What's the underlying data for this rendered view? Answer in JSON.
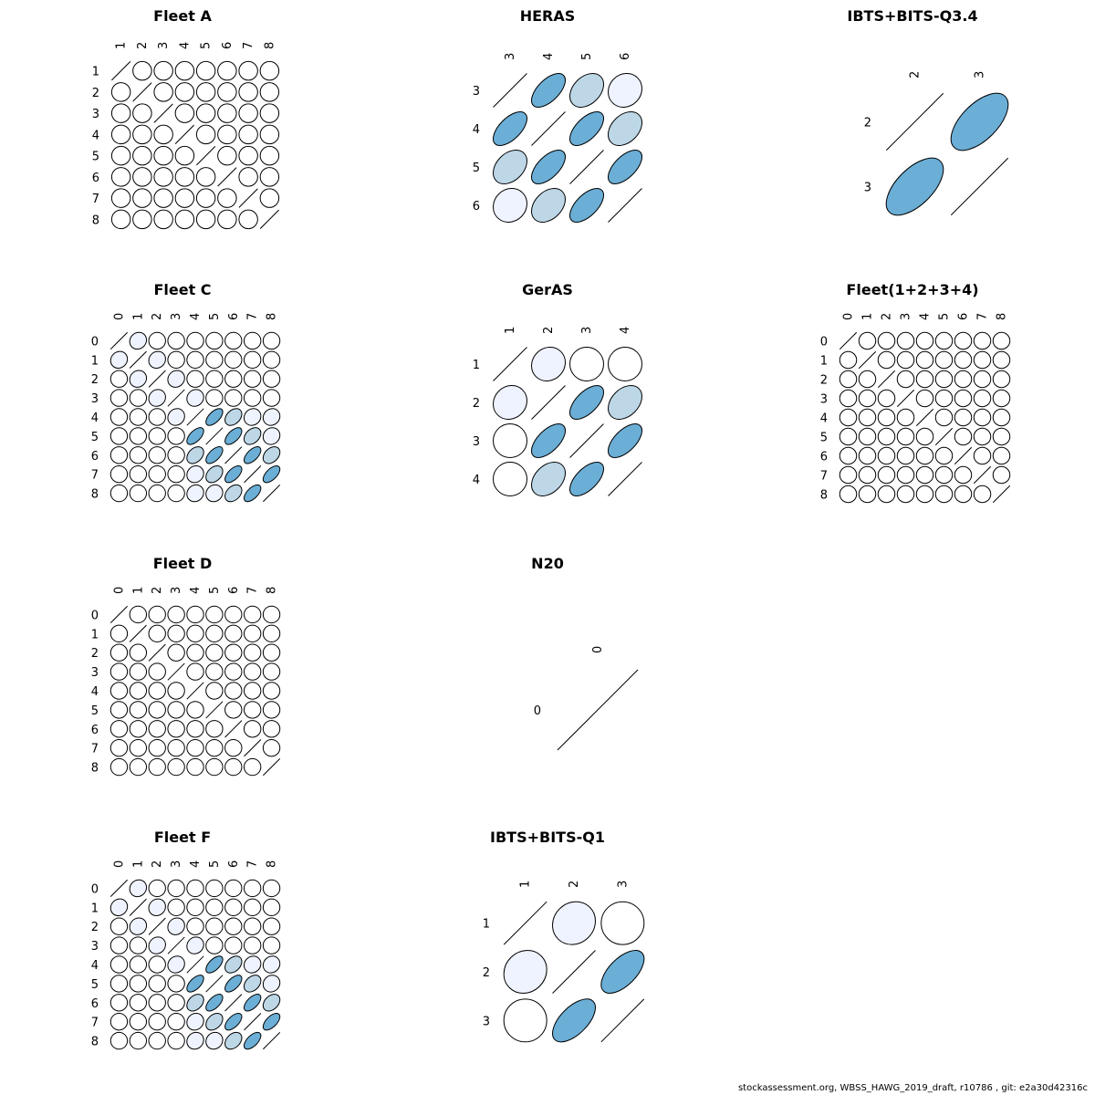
{
  "footer_text": "stockassessment.org, WBSS_HAWG_2019_draft, r10786 , git: e2a30d42316c",
  "palette": {
    "strong": "#6baed6",
    "medium": "#bdd7e7",
    "weak": "#eff3ff",
    "none": "#ffffff",
    "stroke": "#000000"
  },
  "chart_data": [
    {
      "type": "heatmap",
      "title": "Fleet A",
      "labels": [
        "1",
        "2",
        "3",
        "4",
        "5",
        "6",
        "7",
        "8"
      ],
      "matrix": [
        [
          1,
          0,
          0,
          0,
          0,
          0,
          0,
          0
        ],
        [
          0,
          1,
          0,
          0,
          0,
          0,
          0,
          0
        ],
        [
          0,
          0,
          1,
          0,
          0,
          0,
          0,
          0
        ],
        [
          0,
          0,
          0,
          1,
          0,
          0,
          0,
          0
        ],
        [
          0,
          0,
          0,
          0,
          1,
          0,
          0,
          0
        ],
        [
          0,
          0,
          0,
          0,
          0,
          1,
          0,
          0
        ],
        [
          0,
          0,
          0,
          0,
          0,
          0,
          1,
          0
        ],
        [
          0,
          0,
          0,
          0,
          0,
          0,
          0,
          1
        ]
      ]
    },
    {
      "type": "heatmap",
      "title": "HERAS",
      "labels": [
        "3",
        "4",
        "5",
        "6"
      ],
      "matrix": [
        [
          1,
          0.6,
          0.35,
          0.1
        ],
        [
          0.6,
          1,
          0.6,
          0.35
        ],
        [
          0.35,
          0.6,
          1,
          0.6
        ],
        [
          0.1,
          0.35,
          0.6,
          1
        ]
      ]
    },
    {
      "type": "heatmap",
      "title": "IBTS+BITS-Q3.4",
      "labels": [
        "2",
        "3"
      ],
      "matrix": [
        [
          1,
          0.6
        ],
        [
          0.6,
          1
        ]
      ]
    },
    {
      "type": "heatmap",
      "title": "Fleet C",
      "labels": [
        "0",
        "1",
        "2",
        "3",
        "4",
        "5",
        "6",
        "7",
        "8"
      ],
      "matrix": [
        [
          1,
          0.1,
          0,
          0,
          0,
          0,
          0,
          0,
          0
        ],
        [
          0.1,
          1,
          0.1,
          0,
          0,
          0,
          0,
          0,
          0
        ],
        [
          0,
          0.1,
          1,
          0.1,
          0,
          0,
          0,
          0,
          0
        ],
        [
          0,
          0,
          0.1,
          1,
          0.1,
          0,
          0,
          0,
          0
        ],
        [
          0,
          0,
          0,
          0.1,
          1,
          0.6,
          0.35,
          0.1,
          0.1
        ],
        [
          0,
          0,
          0,
          0,
          0.6,
          1,
          0.6,
          0.35,
          0.1
        ],
        [
          0,
          0,
          0,
          0,
          0.35,
          0.6,
          1,
          0.6,
          0.35
        ],
        [
          0,
          0,
          0,
          0,
          0.1,
          0.35,
          0.6,
          1,
          0.6
        ],
        [
          0,
          0,
          0,
          0,
          0.1,
          0.1,
          0.35,
          0.6,
          1
        ]
      ]
    },
    {
      "type": "heatmap",
      "title": "GerAS",
      "labels": [
        "1",
        "2",
        "3",
        "4"
      ],
      "matrix": [
        [
          1,
          0.1,
          0,
          0
        ],
        [
          0.1,
          1,
          0.6,
          0.35
        ],
        [
          0,
          0.6,
          1,
          0.6
        ],
        [
          0,
          0.35,
          0.6,
          1
        ]
      ]
    },
    {
      "type": "heatmap",
      "title": "Fleet(1+2+3+4)",
      "labels": [
        "0",
        "1",
        "2",
        "3",
        "4",
        "5",
        "6",
        "7",
        "8"
      ],
      "matrix": [
        [
          1,
          0,
          0,
          0,
          0,
          0,
          0,
          0,
          0
        ],
        [
          0,
          1,
          0,
          0,
          0,
          0,
          0,
          0,
          0
        ],
        [
          0,
          0,
          1,
          0,
          0,
          0,
          0,
          0,
          0
        ],
        [
          0,
          0,
          0,
          1,
          0,
          0,
          0,
          0,
          0
        ],
        [
          0,
          0,
          0,
          0,
          1,
          0,
          0,
          0,
          0
        ],
        [
          0,
          0,
          0,
          0,
          0,
          1,
          0,
          0,
          0
        ],
        [
          0,
          0,
          0,
          0,
          0,
          0,
          1,
          0,
          0
        ],
        [
          0,
          0,
          0,
          0,
          0,
          0,
          0,
          1,
          0
        ],
        [
          0,
          0,
          0,
          0,
          0,
          0,
          0,
          0,
          1
        ]
      ]
    },
    {
      "type": "heatmap",
      "title": "Fleet D",
      "labels": [
        "0",
        "1",
        "2",
        "3",
        "4",
        "5",
        "6",
        "7",
        "8"
      ],
      "matrix": [
        [
          1,
          0,
          0,
          0,
          0,
          0,
          0,
          0,
          0
        ],
        [
          0,
          1,
          0,
          0,
          0,
          0,
          0,
          0,
          0
        ],
        [
          0,
          0,
          1,
          0,
          0,
          0,
          0,
          0,
          0
        ],
        [
          0,
          0,
          0,
          1,
          0,
          0,
          0,
          0,
          0
        ],
        [
          0,
          0,
          0,
          0,
          1,
          0,
          0,
          0,
          0
        ],
        [
          0,
          0,
          0,
          0,
          0,
          1,
          0,
          0,
          0
        ],
        [
          0,
          0,
          0,
          0,
          0,
          0,
          1,
          0,
          0
        ],
        [
          0,
          0,
          0,
          0,
          0,
          0,
          0,
          1,
          0
        ],
        [
          0,
          0,
          0,
          0,
          0,
          0,
          0,
          0,
          1
        ]
      ]
    },
    {
      "type": "heatmap",
      "title": "N20",
      "labels": [
        "0"
      ],
      "matrix": [
        [
          1
        ]
      ]
    },
    {
      "type": "heatmap",
      "title": "Fleet F",
      "labels": [
        "0",
        "1",
        "2",
        "3",
        "4",
        "5",
        "6",
        "7",
        "8"
      ],
      "matrix": [
        [
          1,
          0.1,
          0,
          0,
          0,
          0,
          0,
          0,
          0
        ],
        [
          0.1,
          1,
          0.1,
          0,
          0,
          0,
          0,
          0,
          0
        ],
        [
          0,
          0.1,
          1,
          0.1,
          0,
          0,
          0,
          0,
          0
        ],
        [
          0,
          0,
          0.1,
          1,
          0.1,
          0,
          0,
          0,
          0
        ],
        [
          0,
          0,
          0,
          0.1,
          1,
          0.6,
          0.35,
          0.1,
          0.1
        ],
        [
          0,
          0,
          0,
          0,
          0.6,
          1,
          0.6,
          0.35,
          0.1
        ],
        [
          0,
          0,
          0,
          0,
          0.35,
          0.6,
          1,
          0.6,
          0.35
        ],
        [
          0,
          0,
          0,
          0,
          0.1,
          0.35,
          0.6,
          1,
          0.6
        ],
        [
          0,
          0,
          0,
          0,
          0.1,
          0.1,
          0.35,
          0.6,
          1
        ]
      ]
    },
    {
      "type": "heatmap",
      "title": "IBTS+BITS-Q1",
      "labels": [
        "1",
        "2",
        "3"
      ],
      "matrix": [
        [
          1,
          0.1,
          0
        ],
        [
          0.1,
          1,
          0.6
        ],
        [
          0,
          0.6,
          1
        ]
      ]
    }
  ]
}
